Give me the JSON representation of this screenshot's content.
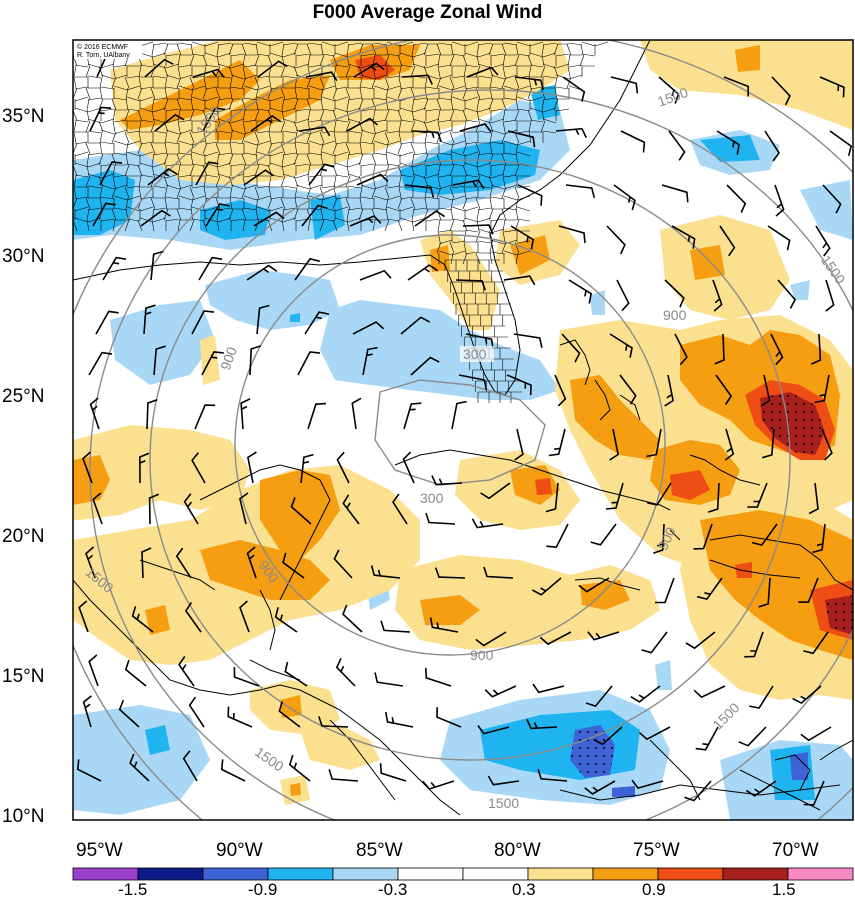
{
  "title": "F000 Average Zonal Wind",
  "credit": {
    "line1": "© 2016 ECMWF",
    "line2": "R. Torn, UAlbany"
  },
  "lat_labels": [
    "35°N",
    "30°N",
    "25°N",
    "20°N",
    "15°N",
    "10°N"
  ],
  "lon_labels": [
    "95°W",
    "90°W",
    "85°W",
    "80°W",
    "75°W",
    "70°W"
  ],
  "contour_labels": {
    "c300": "300",
    "c900": "900",
    "c1500": "1500"
  },
  "colorbar": {
    "labels": [
      "-1.5",
      "-0.9",
      "-0.3",
      "0.3",
      "0.9",
      "1.5"
    ],
    "colors": [
      "#9c3fcf",
      "#0c1a8a",
      "#3e63d6",
      "#1fb4ef",
      "#a9d8f6",
      "#ffffff",
      "#ffffff",
      "#fbe08f",
      "#f59e11",
      "#ee4d13",
      "#a7201d",
      "#f989c4"
    ]
  },
  "palette": {
    "pos1": "#fbe08f",
    "pos2": "#f59e11",
    "pos3": "#ee4d13",
    "pos4": "#a7201d",
    "neg1": "#a9d8f6",
    "neg2": "#1fb4ef",
    "neg3": "#3e63d6",
    "coast": "#000000",
    "contour": "#8a8a8a"
  }
}
